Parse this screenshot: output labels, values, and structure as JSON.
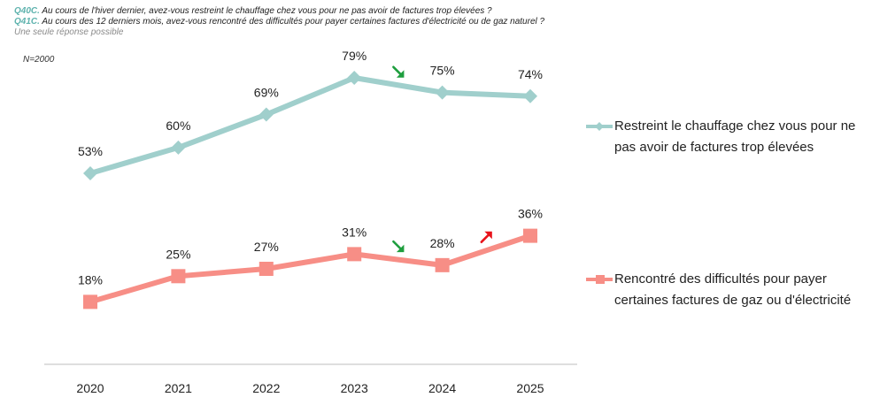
{
  "header": {
    "q1_code": "Q40C.",
    "q1_text": " Au cours de l'hiver dernier, avez-vous restreint le chauffage chez vous pour ne pas avoir de factures trop élevées ?",
    "q2_code": "Q41C.",
    "q2_text": " Au cours des 12 derniers mois, avez-vous rencontré des difficultés pour payer certaines factures d'électricité ou de gaz naturel ?",
    "note": "Une seule réponse possible",
    "sample": "N=2000"
  },
  "chart_data": {
    "type": "line",
    "categories": [
      "2020",
      "2021",
      "2022",
      "2023",
      "2024",
      "2025"
    ],
    "ylim": [
      0,
      100
    ],
    "series": [
      {
        "name": "Restreint le chauffage chez vous pour ne pas avoir de factures trop élevées",
        "values": [
          53,
          60,
          69,
          79,
          75,
          74
        ],
        "labels": [
          "53%",
          "60%",
          "69%",
          "79%",
          "75%",
          "74%"
        ],
        "color": "#a0cfcc",
        "marker": "diamond"
      },
      {
        "name": "Rencontré des difficultés pour payer certaines factures de gaz ou d'électricité",
        "values": [
          18,
          25,
          27,
          31,
          28,
          36
        ],
        "labels": [
          "18%",
          "25%",
          "27%",
          "31%",
          "28%",
          "36%"
        ],
        "color": "#f78e86",
        "marker": "square"
      }
    ],
    "trend_arrows": [
      {
        "series": 0,
        "between": [
          "2023",
          "2024"
        ],
        "direction": "down",
        "color": "#1e9e3e"
      },
      {
        "series": 1,
        "between": [
          "2023",
          "2024"
        ],
        "direction": "down",
        "color": "#1e9e3e"
      },
      {
        "series": 1,
        "between": [
          "2024",
          "2025"
        ],
        "direction": "up",
        "color": "#e8131b"
      }
    ]
  }
}
